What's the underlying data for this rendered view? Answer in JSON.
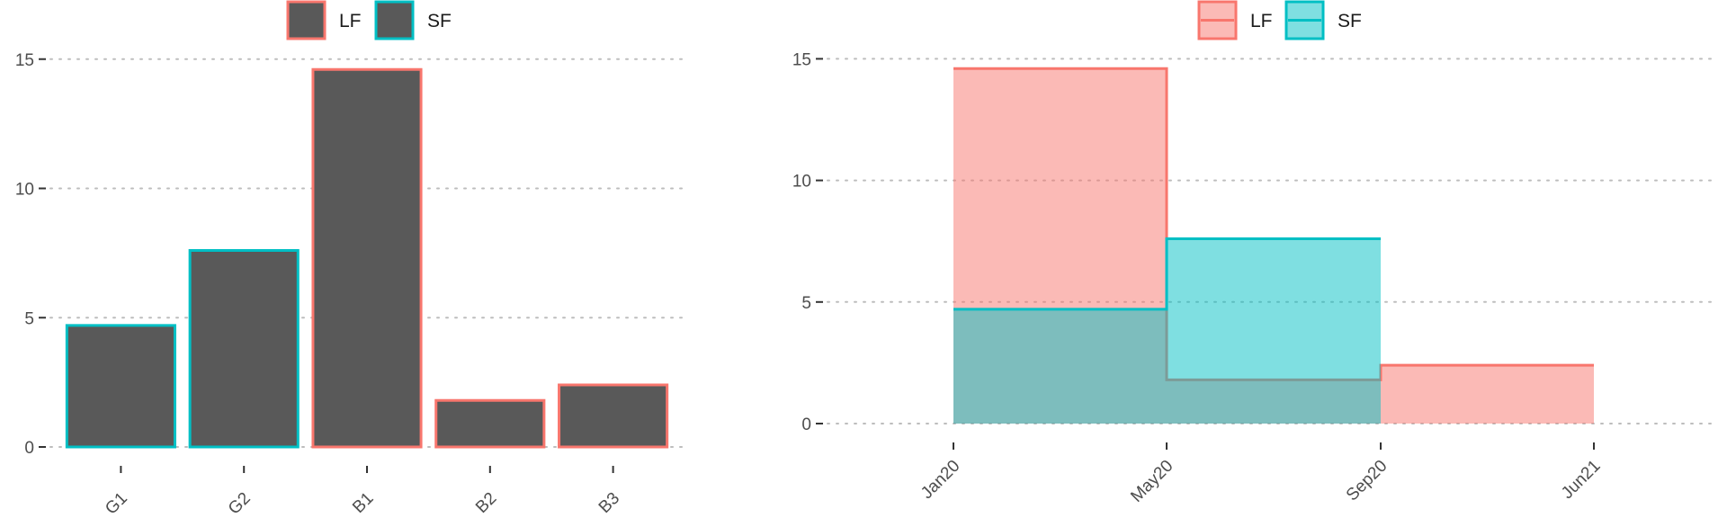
{
  "colors": {
    "LF": "#F8766D",
    "SF": "#00BFC4",
    "bar_fill": "#595959"
  },
  "chart_data": [
    {
      "type": "bar",
      "legend": [
        "LF",
        "SF"
      ],
      "legend_placement": "top",
      "categories": [
        "G1",
        "G2",
        "B1",
        "B2",
        "B3"
      ],
      "values": [
        4.7,
        7.6,
        14.6,
        1.8,
        2.4
      ],
      "outline_group": [
        "SF",
        "SF",
        "LF",
        "LF",
        "LF"
      ],
      "yticks": [
        "0",
        "5",
        "10",
        "15"
      ],
      "ylim": [
        0,
        15.2
      ],
      "grid": "horizontal dotted"
    },
    {
      "type": "area",
      "step": true,
      "legend": [
        "LF",
        "SF"
      ],
      "legend_placement": "top",
      "xticks": [
        "Jan20",
        "May20",
        "Sep20",
        "Jun21"
      ],
      "series": [
        {
          "name": "LF",
          "steps": [
            {
              "from": "Jan20",
              "to": "May20",
              "value": 14.6
            },
            {
              "from": "May20",
              "to": "Sep20",
              "value": 1.8
            },
            {
              "from": "Sep20",
              "to": "Jun21",
              "value": 2.4
            }
          ]
        },
        {
          "name": "SF",
          "steps": [
            {
              "from": "Jan20",
              "to": "May20",
              "value": 4.7
            },
            {
              "from": "May20",
              "to": "Sep20",
              "value": 7.6
            }
          ]
        }
      ],
      "yticks": [
        "0",
        "5",
        "10",
        "15"
      ],
      "ylim": [
        0,
        15.2
      ],
      "grid": "horizontal dotted"
    }
  ]
}
